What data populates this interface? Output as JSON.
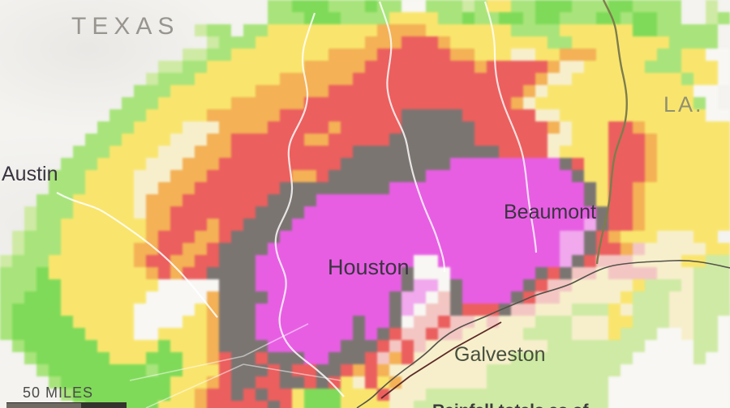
{
  "region_labels": {
    "texas": "TEXAS",
    "louisiana": "LA."
  },
  "city_labels": {
    "austin": "Austin",
    "houston": "Houston",
    "beaumont": "Beaumont",
    "galveston": "Galveston"
  },
  "scale_bar": {
    "label": "50 MILES"
  },
  "caption_partial": "Rainfall totals as of",
  "raster": {
    "cell": 15,
    "palette": {
      ".": null,
      "a": "#cfeaa6",
      "g": "#a9e37d",
      "G": "#82d95c",
      "y": "#f8e570",
      "Y": "#f7efcd",
      "o": "#f2b158",
      "r": "#e8605f",
      "d": "#7b7572",
      "m": "#e45fe0",
      "M": "#efa9ec",
      "p": "#f2c6c3",
      "w": "#f8f7f3"
    },
    "rows": [
      "......................ggGGGgggGggwwgggagyyggGGGgggGGgggg..a",
      "......................gggGGGggggyyyyggGggGGgGGgggGGgGGgg..ag",
      "................agguggyyyyyyyyyooooyyyyyyyggggyyyyyyGGggggg",
      ".................agggyyyyyyyyyooorrroyyyyyyyyggyyyyyyyygggg",
      "...............aaggyyyyyyyyoooorrrrrrooyyyYYyyoooyyyyyggyyww",
      ".............aaggyyyyyyyyooooorrrrrrrrrorrrrroYYyyyyygggyyyw",
      "............agggyyyyyyyoooooorrrrrrrrrrrrrrroYYyyyyyyyyygyyw",
      "...........gggyyyyyyyoooooorrrrrrrrrrrrrrrroYyyyyyyyyyyyyww",
      "..........gggyyyyyyoooooorrrrrrrrrrrrrrrrroYyyyyyyyyyyyyygw",
      ".........gggyyyyyoooooorrrrrrrrrrdddddrrrrrrYYyyyyyyyyyyyyww",
      "........gggyyyyYYYoooorrrrrorrrrrddddddrrrrrroYyyyrroyyyyyyy",
      ".......gggyyyyYYYoorrrrrroorrrrrdddddddrrrrrrYYyyyrrroyyyyyy",
      "......gggyyyyYYYooorrrrrrrrrrddddddddddddrrrrYyyyyrrroyyyyyy",
      ".....gggyyyyYYYooorrrrrrrrrrdddddddddmmmmmmmmmdryyrrroyyyyyy",
      "....gggyyyyYYYooorrrrrrroorddddddddmmmmmmmmmmmmdyyrrroyyyyyy",
      "....gggyyyyYYooorrrrrrrdddddddddmmmmmmmmmmmmmmmmdyrroyyyyyyy",
      "...gggyyyyyYooorrrrrrrddddmmmmmmmmmmmmmmmmmmmmmmdyrroyyyyyyy",
      "..agggyyyyyYoorrrrrrrddddmmmmmmmmmmmmmmmmmmmmmmmmdrroyyyyyyy",
      "..aggyyyyyyyoorrrorrddddmmmmmmmmmmmmmmmmmmmmmmmmMdrroyyyyyyy",
      ".agggyyyyyyyorrroorddddmmmmmmmmmmmmmmmmmmmmmmmMMdroyyyYYYyy",
      ".agggyyyyyyoorroorddddmmmmmmmmmmmmmmmmmmmmmmmmMMdrropYYYYYyy",
      "agggyyyyyyyorroorrdddmmmmmmmmmmmmmwwmmmmmmmmmmMdrpppYYYYyyaa",
      "gggGyyyyyyyyororrddddmmmmmmmmmmmmdwwwmmmmmmmdrdppYppppYYYaaa",
      "gggGGyyyyyyyywwwwwdddmmmmmmmmmmmmdMMwdmmmmmdrppYYYYYyaaaYaaa",
      "ggGGGyyyyyyywwwwwoddddmmmmmmmmmmdMMwpdmmmmdrppYYYYYyaaaYYaaa",
      "gGGGGyyyyyywwwwwyodddmmmmmmmmmmmdMwppdrrrdppYYYaaayYaaaYYaaa",
      "gGGGGGyyyyywwwwyyodddmmmmmmmmdmmdwpprppYpYYYaaaYYYyyaaaYYaaw",
      "gGGGGGGyyyywwyyyyodddmmmmmmmmdmdrpprppYYYYYaaaaYYYyaaawwYaaw",
      ".gGGGGGGyyyyyGyyyoddddmmmmmmdddrprpYYYYYYYYYYaaaaaaaawwwwaaw",
      "..gGGGGGGyyyGGGyyorddrdddmmdddrporYYYYYYYYaaaaaaaaaawwwwwaww",
      "...gGGGGGGGGgGGyyyrdddrdrrddroroYYYYYYYYaaaaaaaaaaawwwwwwwww",
      "....gGGGGGGGGGyyyorddrrddrdryYryoYYYYYYYaaaaaaaaaawwwwwwwwww",
      ".....gGGGGGGGGyyorrdrdrryGGGyyyrYYYaaaaaaaaaaaaaaawwwwwwwwww",
      "......gGGGGGGyyyorrrrrdryGGGyyyyYYaaaaaaaaaaaaaaaawwwwwwwwww"
    ]
  }
}
